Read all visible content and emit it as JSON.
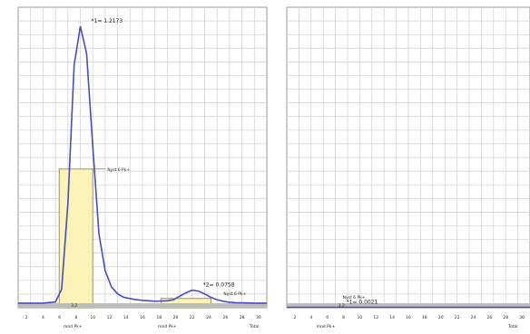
{
  "chart_data": [
    {
      "type": "line",
      "xlabel": "",
      "ylabel": "",
      "grid": true,
      "ylim": [
        0,
        1.3
      ],
      "x": [
        0,
        1,
        2,
        3,
        3.5,
        4,
        4.5,
        5,
        5.5,
        6,
        6.5,
        7,
        7.5,
        8,
        8.5,
        9,
        9.5,
        10,
        11,
        12,
        12.5,
        13,
        13.5,
        14,
        14.5,
        15,
        15.5,
        16,
        16.5,
        17,
        17.5,
        18,
        19,
        20
      ],
      "series": [
        {
          "values": [
            0.02,
            0.02,
            0.02,
            0.025,
            0.08,
            0.45,
            1.05,
            1.2173,
            1.1,
            0.7,
            0.32,
            0.16,
            0.09,
            0.06,
            0.045,
            0.04,
            0.035,
            0.032,
            0.028,
            0.03,
            0.035,
            0.05,
            0.065,
            0.0758,
            0.072,
            0.06,
            0.045,
            0.035,
            0.028,
            0.024,
            0.022,
            0.021,
            0.02,
            0.02
          ]
        }
      ],
      "peak_labels": [
        {
          "text": "*1= 1.2173",
          "x": 5,
          "y": 1.2173
        },
        {
          "text": "*2= 0.0758",
          "x": 14,
          "y": 0.0758
        }
      ],
      "band_labels": [
        "Nyst 6 Pk+",
        "Nyst 6 Pk+"
      ],
      "highlight_bands": [
        {
          "x0": 3.3,
          "x1": 6.0,
          "y": 0.6
        },
        {
          "x0": 11.5,
          "x1": 15.5,
          "y": 0.04
        }
      ],
      "x_tick_labels": [
        "2",
        "4",
        "6",
        "8",
        "10",
        "12",
        "14",
        "16",
        "18",
        "20",
        "22",
        "24",
        "26",
        "28",
        "30"
      ],
      "sub_axis_labels": [
        "mnd Pk+",
        "mnd Pk+",
        "Total"
      ],
      "baseline_label": "3.2"
    },
    {
      "type": "line",
      "xlabel": "",
      "ylabel": "",
      "grid": true,
      "ylim": [
        0,
        1.3
      ],
      "x": [
        0,
        20
      ],
      "series": [
        {
          "values": [
            0.0021,
            0.0021
          ]
        }
      ],
      "peak_labels": [
        {
          "text": "*1= 0.0021",
          "x": 4,
          "y": 0.0021
        }
      ],
      "band_labels": [
        "Nyst 6 Pk+"
      ],
      "highlight_bands": [],
      "x_tick_labels": [
        "2",
        "4",
        "6",
        "8",
        "10",
        "12",
        "14",
        "16",
        "18",
        "20",
        "22",
        "24",
        "26",
        "28",
        "30"
      ],
      "sub_axis_labels": [
        "mnd Pk+",
        "Total"
      ],
      "baseline_label": "3.2"
    }
  ],
  "colors": {
    "curve": "#4a4ac8",
    "grid": "#cfcfcf",
    "band_fill": "#fbf3b8",
    "band_stroke": "#8a7a3a",
    "bar": "#bdbdbd",
    "frame": "#9a9a9a"
  }
}
